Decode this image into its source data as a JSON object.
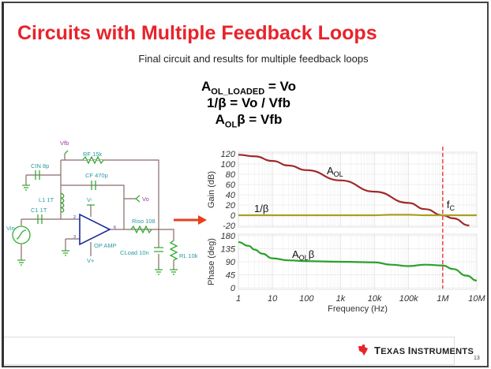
{
  "slide": {
    "title": "Circuits with Multiple Feedback Loops",
    "subtitle": "Final circuit and results for multiple feedback loops",
    "page_number": "13",
    "brand": "Texas Instruments",
    "brand_first": "T",
    "brand_rest1": "EXAS ",
    "brand_second": "I",
    "brand_rest2": "NSTRUMENTS",
    "accent_color": "#e8232a"
  },
  "equations": [
    {
      "lhs": "A",
      "sub": "OL_LOADED",
      "rhs": " = Vo"
    },
    {
      "lhs": "1/β",
      "sub": "",
      "rhs": " = Vo / Vfb"
    },
    {
      "lhs": "A",
      "sub": "OL",
      "rhs": "β = Vfb"
    }
  ],
  "schematic": {
    "vfb": "Vfb",
    "rf": "RF 15k",
    "cin": "CIN 8p",
    "cf": "CF 470p",
    "vo": "Vo",
    "l1": "L1 1T",
    "c1": "C1 1T",
    "vin": "Vin",
    "vminus": "V-",
    "vplus": "V+",
    "pin2": "2",
    "pin3": "3",
    "pin6": "6",
    "opamp": "OP AMP",
    "riso": "Riso 108",
    "cload": "CLoad 10n",
    "rl": "RL 10k"
  },
  "chart_data": [
    {
      "type": "line",
      "title": "",
      "xlabel": "Frequency (Hz)",
      "ylabel": "Gain (dB)",
      "xscale": "log",
      "xlim": [
        1,
        10000000
      ],
      "ylim": [
        -20,
        120
      ],
      "yticks": [
        "120",
        "100",
        "80",
        "60",
        "40",
        "20",
        "0",
        "-20"
      ],
      "grid": true,
      "series": [
        {
          "name": "AOL",
          "label_main": "A",
          "label_sub": "OL",
          "color": "#a0282a",
          "x": [
            1,
            3,
            10,
            30,
            100,
            1000,
            10000,
            100000,
            300000,
            1000000,
            2000000,
            6000000
          ],
          "y": [
            118,
            115,
            106,
            97,
            88,
            68,
            46,
            24,
            12,
            0,
            -6,
            -20
          ]
        },
        {
          "name": "1/β",
          "color": "#a8a020",
          "x": [
            1,
            10000,
            30000,
            100000,
            300000,
            1000000,
            10000000
          ],
          "y": [
            0,
            0,
            1,
            1,
            0,
            0,
            0
          ]
        }
      ],
      "annotations": [
        {
          "text": "fc",
          "main": "f",
          "sub": "C",
          "x": 1000000,
          "color": "#e8232a"
        }
      ]
    },
    {
      "type": "line",
      "xlabel": "Frequency (Hz)",
      "ylabel": "Phase (deg)",
      "xscale": "log",
      "xlim": [
        1,
        10000000
      ],
      "ylim": [
        0,
        180
      ],
      "yticks": [
        "180",
        "135",
        "90",
        "45",
        "0"
      ],
      "xticks": [
        "1",
        "10",
        "100",
        "1k",
        "10k",
        "100k",
        "1M",
        "10M"
      ],
      "grid": true,
      "series": [
        {
          "name": "AOLβ",
          "label_main": "A",
          "label_sub": "OL",
          "label_tail": "β",
          "color": "#2aa02a",
          "x": [
            1,
            2,
            3,
            5,
            10,
            30,
            100,
            1000,
            10000,
            30000,
            100000,
            300000,
            1000000,
            2000000,
            5000000,
            10000000
          ],
          "y": [
            158,
            145,
            132,
            118,
            102,
            95,
            92,
            90,
            88,
            80,
            75,
            80,
            77,
            65,
            42,
            25
          ]
        }
      ]
    }
  ]
}
